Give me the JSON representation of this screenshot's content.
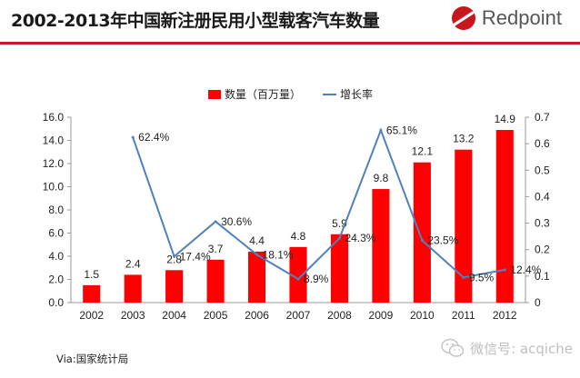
{
  "header": {
    "title": "2002-2013年中国新注册民用小型载客汽车数量",
    "brand": "Redpoint",
    "accent_color": "#c9161c"
  },
  "footer": {
    "source": "Via:国家统计局",
    "watermark": "微信号: acqiche",
    "watermark_icon": "wechat-icon"
  },
  "chart_data": {
    "type": "bar",
    "categories": [
      "2002",
      "2003",
      "2004",
      "2005",
      "2006",
      "2007",
      "2008",
      "2009",
      "2010",
      "2011",
      "2012"
    ],
    "series": [
      {
        "name": "数量（百万量）",
        "kind": "bar",
        "axis": "left",
        "color": "#ff0000",
        "values": [
          1.5,
          2.4,
          2.8,
          3.7,
          4.4,
          4.8,
          5.9,
          9.8,
          12.1,
          13.2,
          14.9
        ],
        "labels": [
          "1.5",
          "2.4",
          "2.8",
          "3.7",
          "4.4",
          "4.8",
          "5.9",
          "9.8",
          "12.1",
          "13.2",
          "14.9"
        ]
      },
      {
        "name": "增长率",
        "kind": "line",
        "axis": "right",
        "color": "#4f81bd",
        "values": [
          null,
          0.624,
          0.174,
          0.306,
          0.181,
          0.089,
          0.243,
          0.651,
          0.235,
          0.095,
          0.124
        ],
        "labels": [
          null,
          "62.4%",
          "17.4%",
          "30.6%",
          "18.1%",
          "8.9%",
          "24.3%",
          "65.1%",
          "23.5%",
          "9.5%",
          "12.4%"
        ]
      }
    ],
    "y_left": {
      "lim": [
        0,
        16
      ],
      "ticks": [
        "0.0",
        "2.0",
        "4.0",
        "6.0",
        "8.0",
        "10.0",
        "12.0",
        "14.0",
        "16.0"
      ]
    },
    "y_right": {
      "lim": [
        0,
        0.7
      ],
      "ticks": [
        "0",
        "0.1",
        "0.2",
        "0.3",
        "0.4",
        "0.5",
        "0.6",
        "0.7"
      ]
    },
    "grid": false,
    "legend_position": "top-center"
  }
}
